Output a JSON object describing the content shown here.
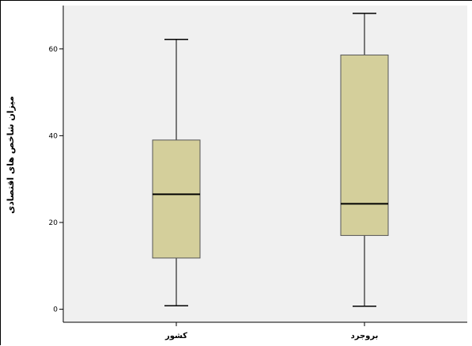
{
  "chart_data": {
    "type": "boxplot",
    "title": "",
    "xlabel": "",
    "ylabel": "میزان شاخص های اقتصادی",
    "ylim": [
      -3,
      70
    ],
    "yticks": [
      0,
      20,
      40,
      60
    ],
    "ytick_labels": [
      "0",
      "20",
      "40",
      "60"
    ],
    "grid": false,
    "colors": {
      "plot_background": "#f0f0f0",
      "box_fill": "#d4cf9b",
      "box_stroke": "#555555",
      "median": "#000000",
      "axis": "#000000"
    },
    "categories": [
      "کشور",
      "بروجرد"
    ],
    "boxes": [
      {
        "category": "کشور",
        "min": 0.8,
        "q1": 11.8,
        "median": 26.5,
        "q3": 39.0,
        "max": 62.2
      },
      {
        "category": "بروجرد",
        "min": 0.7,
        "q1": 17.0,
        "median": 24.3,
        "q3": 58.6,
        "max": 68.2
      }
    ]
  }
}
